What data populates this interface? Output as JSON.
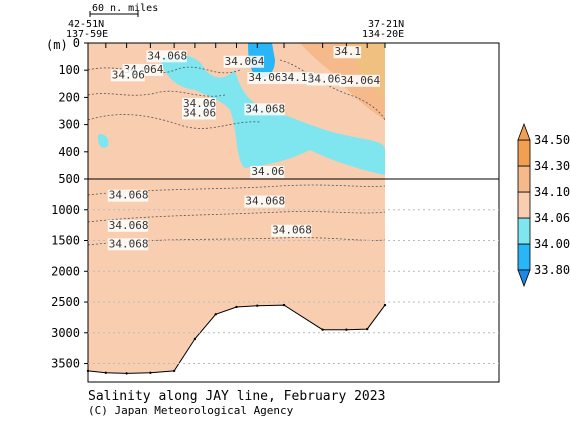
{
  "chart_data": {
    "type": "heatmap",
    "title": "Salinity along JAY line, February 2023",
    "credit": "(C) Japan Meteorological Agency",
    "yunit_label": "(m)",
    "scale_bar_label": "60 n. miles",
    "stations": {
      "left": {
        "lat": "42-51N",
        "lon": "137-59E"
      },
      "right": {
        "lat": "37-21N",
        "lon": "134-20E"
      }
    },
    "upper_panel": {
      "ylim": [
        0,
        500
      ],
      "yticks": [
        0,
        100,
        200,
        300,
        400,
        500
      ]
    },
    "lower_panel": {
      "ylim": [
        500,
        3800
      ],
      "yticks": [
        1000,
        1500,
        2000,
        2500,
        3000,
        3500
      ]
    },
    "depth_grid_lines": [
      1000,
      1500,
      2000,
      2500,
      3000,
      3500
    ],
    "colorbar": {
      "levels": [
        "33.80",
        "34.00",
        "34.06",
        "34.10",
        "34.30",
        "34.50"
      ],
      "colors": [
        "#29b6f6",
        "#7fe6f0",
        "#f9cdb0",
        "#f5b98a",
        "#f0a050"
      ]
    },
    "contour_labels": [
      {
        "text": "34.068",
        "x": 0.2,
        "depth": 60
      },
      {
        "text": "34.064",
        "x": 0.12,
        "depth": 110
      },
      {
        "text": "34.06",
        "x": 0.08,
        "depth": 130
      },
      {
        "text": "34.064",
        "x": 0.46,
        "depth": 80
      },
      {
        "text": "34.1",
        "x": 0.83,
        "depth": 45
      },
      {
        "text": "34.06",
        "x": 0.54,
        "depth": 140
      },
      {
        "text": "34.18",
        "x": 0.65,
        "depth": 140
      },
      {
        "text": "34.06",
        "x": 0.74,
        "depth": 145
      },
      {
        "text": "34.064",
        "x": 0.85,
        "depth": 150
      },
      {
        "text": "34.06",
        "x": 0.32,
        "depth": 235
      },
      {
        "text": "34.06",
        "x": 0.32,
        "depth": 270
      },
      {
        "text": "34.068",
        "x": 0.53,
        "depth": 255
      },
      {
        "text": "34.06",
        "x": 0.55,
        "depth": 485
      },
      {
        "text": "34.068",
        "x": 0.07,
        "depth": 820
      },
      {
        "text": "34.068",
        "x": 0.53,
        "depth": 915
      },
      {
        "text": "34.068",
        "x": 0.07,
        "depth": 1310
      },
      {
        "text": "34.068",
        "x": 0.62,
        "depth": 1390
      },
      {
        "text": "34.068",
        "x": 0.07,
        "depth": 1610
      }
    ],
    "bottom_profile": [
      {
        "x": 0.0,
        "depth": 3620
      },
      {
        "x": 0.06,
        "depth": 3650
      },
      {
        "x": 0.13,
        "depth": 3660
      },
      {
        "x": 0.21,
        "depth": 3650
      },
      {
        "x": 0.29,
        "depth": 3620
      },
      {
        "x": 0.36,
        "depth": 3100
      },
      {
        "x": 0.43,
        "depth": 2700
      },
      {
        "x": 0.5,
        "depth": 2580
      },
      {
        "x": 0.57,
        "depth": 2560
      },
      {
        "x": 0.66,
        "depth": 2550
      },
      {
        "x": 0.79,
        "depth": 2950
      },
      {
        "x": 0.87,
        "depth": 2950
      },
      {
        "x": 0.94,
        "depth": 2940
      },
      {
        "x": 1.0,
        "depth": 2550
      }
    ]
  }
}
